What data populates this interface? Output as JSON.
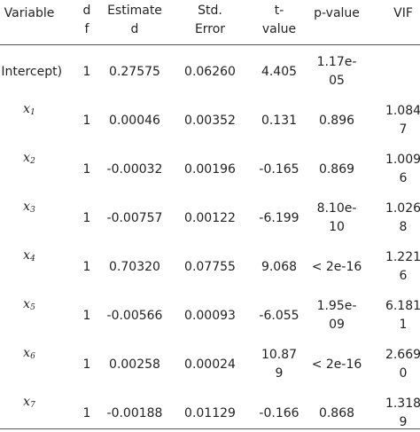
{
  "header": {
    "variable": "Variable",
    "df": "d\nf",
    "estimate": "Estimate\nd",
    "stderr": "Std.\nError",
    "tvalue": "t-\nvalue",
    "pvalue": "p-value",
    "vif": "VIF"
  },
  "rows": [
    {
      "variable": "(Intercept)",
      "var_sub": "",
      "df": "1",
      "estimate": "0.27575",
      "stderr": "0.06260",
      "tvalue": "4.405",
      "pvalue": "1.17e-\n05",
      "vif": ""
    },
    {
      "variable": "x",
      "var_sub": "1",
      "df": "1",
      "estimate": "0.00046",
      "stderr": "0.00352",
      "tvalue": "0.131",
      "pvalue": "0.896",
      "vif": "1.084\n7"
    },
    {
      "variable": "x",
      "var_sub": "2",
      "df": "1",
      "estimate": "-0.00032",
      "stderr": "0.00196",
      "tvalue": "-0.165",
      "pvalue": "0.869",
      "vif": "1.009\n6"
    },
    {
      "variable": "x",
      "var_sub": "3",
      "df": "1",
      "estimate": "-0.00757",
      "stderr": "0.00122",
      "tvalue": "-6.199",
      "pvalue": "8.10e-\n10",
      "vif": "1.026\n8"
    },
    {
      "variable": "x",
      "var_sub": "4",
      "df": "1",
      "estimate": "0.70320",
      "stderr": "0.07755",
      "tvalue": "9.068",
      "pvalue": "< 2e-16",
      "vif": "1.221\n6"
    },
    {
      "variable": "x",
      "var_sub": "5",
      "df": "1",
      "estimate": "-0.00566",
      "stderr": "0.00093",
      "tvalue": "-6.055",
      "pvalue": "1.95e-\n09",
      "vif": "6.181\n1"
    },
    {
      "variable": "x",
      "var_sub": "6",
      "df": "1",
      "estimate": "0.00258",
      "stderr": "0.00024",
      "tvalue": "10.87\n9",
      "pvalue": "< 2e-16",
      "vif": "2.669\n0"
    },
    {
      "variable": "x",
      "var_sub": "7",
      "df": "1",
      "estimate": "-0.00188",
      "stderr": "0.01129",
      "tvalue": "-0.166",
      "pvalue": "0.868",
      "vif": "1.318\n9"
    }
  ],
  "colors": {
    "text": "#222222",
    "rule": "#555555"
  }
}
